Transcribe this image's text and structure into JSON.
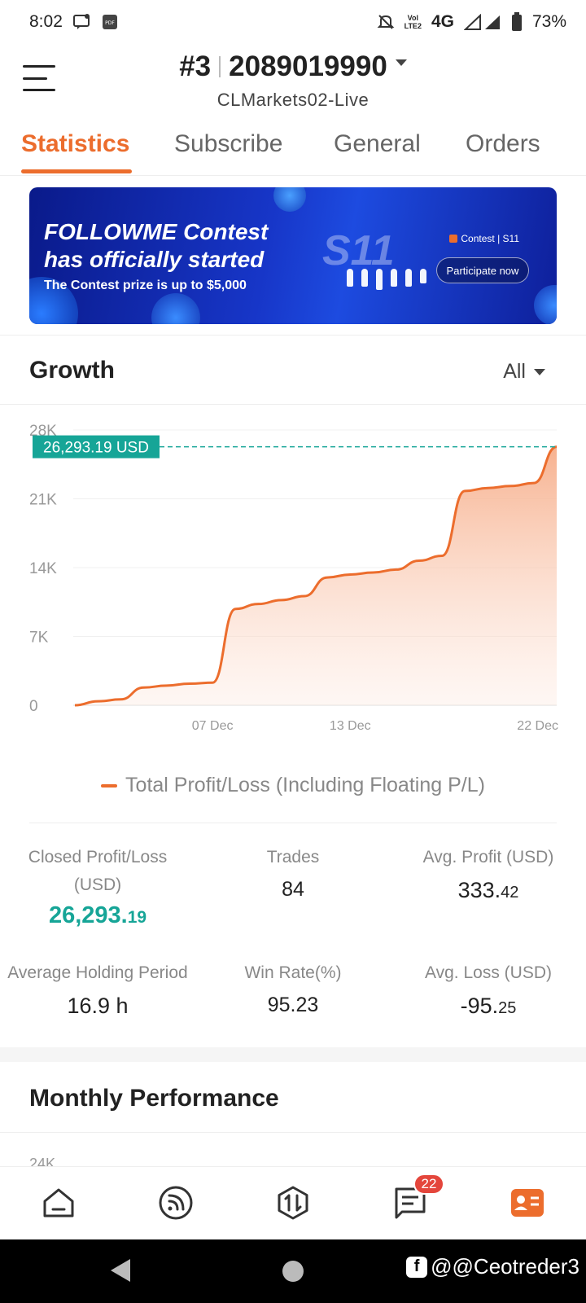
{
  "status_bar": {
    "time": "8:02",
    "network": "4G",
    "lte": "LTE2",
    "battery": "73%",
    "icons": [
      "chat-notification-icon",
      "pdf-icon",
      "mute-icon",
      "volte-icon",
      "signal-icon",
      "battery-icon"
    ]
  },
  "header": {
    "account_rank": "#3",
    "account_number": "2089019990",
    "server": "CLMarkets02-Live"
  },
  "tabs": [
    {
      "label": "Statistics",
      "active": true
    },
    {
      "label": "Subscribe",
      "active": false
    },
    {
      "label": "General",
      "active": false
    },
    {
      "label": "Orders",
      "active": false
    }
  ],
  "banner": {
    "title_line1": "FOLLOWME Contest",
    "title_line2": "has officially started",
    "subtitle": "The Contest prize is up to $5,000",
    "badge_text": "S11",
    "brand": "Contest | S11",
    "cta": "Participate now"
  },
  "growth": {
    "title": "Growth",
    "period": "All",
    "current_label": "26,293.19 USD",
    "legend": "Total Profit/Loss (Including Floating P/L)"
  },
  "chart_data": {
    "type": "area",
    "x_ticks": [
      "07 Dec",
      "13 Dec",
      "22 Dec"
    ],
    "y_ticks": [
      "28K",
      "21K",
      "14K",
      "7K",
      "0"
    ],
    "ylim": [
      0,
      28000
    ],
    "series": [
      {
        "name": "Total Profit/Loss (Including Floating P/L)",
        "color": "#ec6d2d",
        "x": [
          "01 Dec",
          "02 Dec",
          "03 Dec",
          "04 Dec",
          "05 Dec",
          "06 Dec",
          "07 Dec",
          "08 Dec",
          "09 Dec",
          "10 Dec",
          "11 Dec",
          "12 Dec",
          "13 Dec",
          "14 Dec",
          "15 Dec",
          "16 Dec",
          "17 Dec",
          "18 Dec",
          "19 Dec",
          "20 Dec",
          "21 Dec",
          "22 Dec"
        ],
        "values": [
          0,
          400,
          600,
          1800,
          2000,
          2200,
          2300,
          9800,
          10300,
          10700,
          11100,
          13000,
          13300,
          13500,
          13800,
          14700,
          15200,
          21800,
          22100,
          22300,
          22600,
          26293.19
        ]
      }
    ],
    "last_value": 26293.19,
    "grid": true
  },
  "stats": {
    "closed_pl": {
      "label_line1": "Closed Profit/Loss",
      "label_line2": "(USD)",
      "int": "26,293.",
      "dec": "19"
    },
    "trades": {
      "label": "Trades",
      "value": "84"
    },
    "avg_profit": {
      "label": "Avg. Profit (USD)",
      "int": "333.",
      "dec": "42"
    },
    "avg_holding": {
      "label": "Average Holding Period",
      "value": "16.9 h"
    },
    "win_rate": {
      "label": "Win Rate(%)",
      "value": "95.23"
    },
    "avg_loss": {
      "label": "Avg. Loss (USD)",
      "int": "-95.",
      "dec": "25"
    }
  },
  "monthly": {
    "title": "Monthly Performance",
    "first_tick": "24K"
  },
  "bottom_nav": {
    "items": [
      "home-icon",
      "feed-icon",
      "trade-icon",
      "messages-icon",
      "profile-icon"
    ],
    "messages_badge": "22",
    "active_color": "#ec6d2d"
  },
  "watermark": {
    "text": "@@Ceotreder3"
  }
}
